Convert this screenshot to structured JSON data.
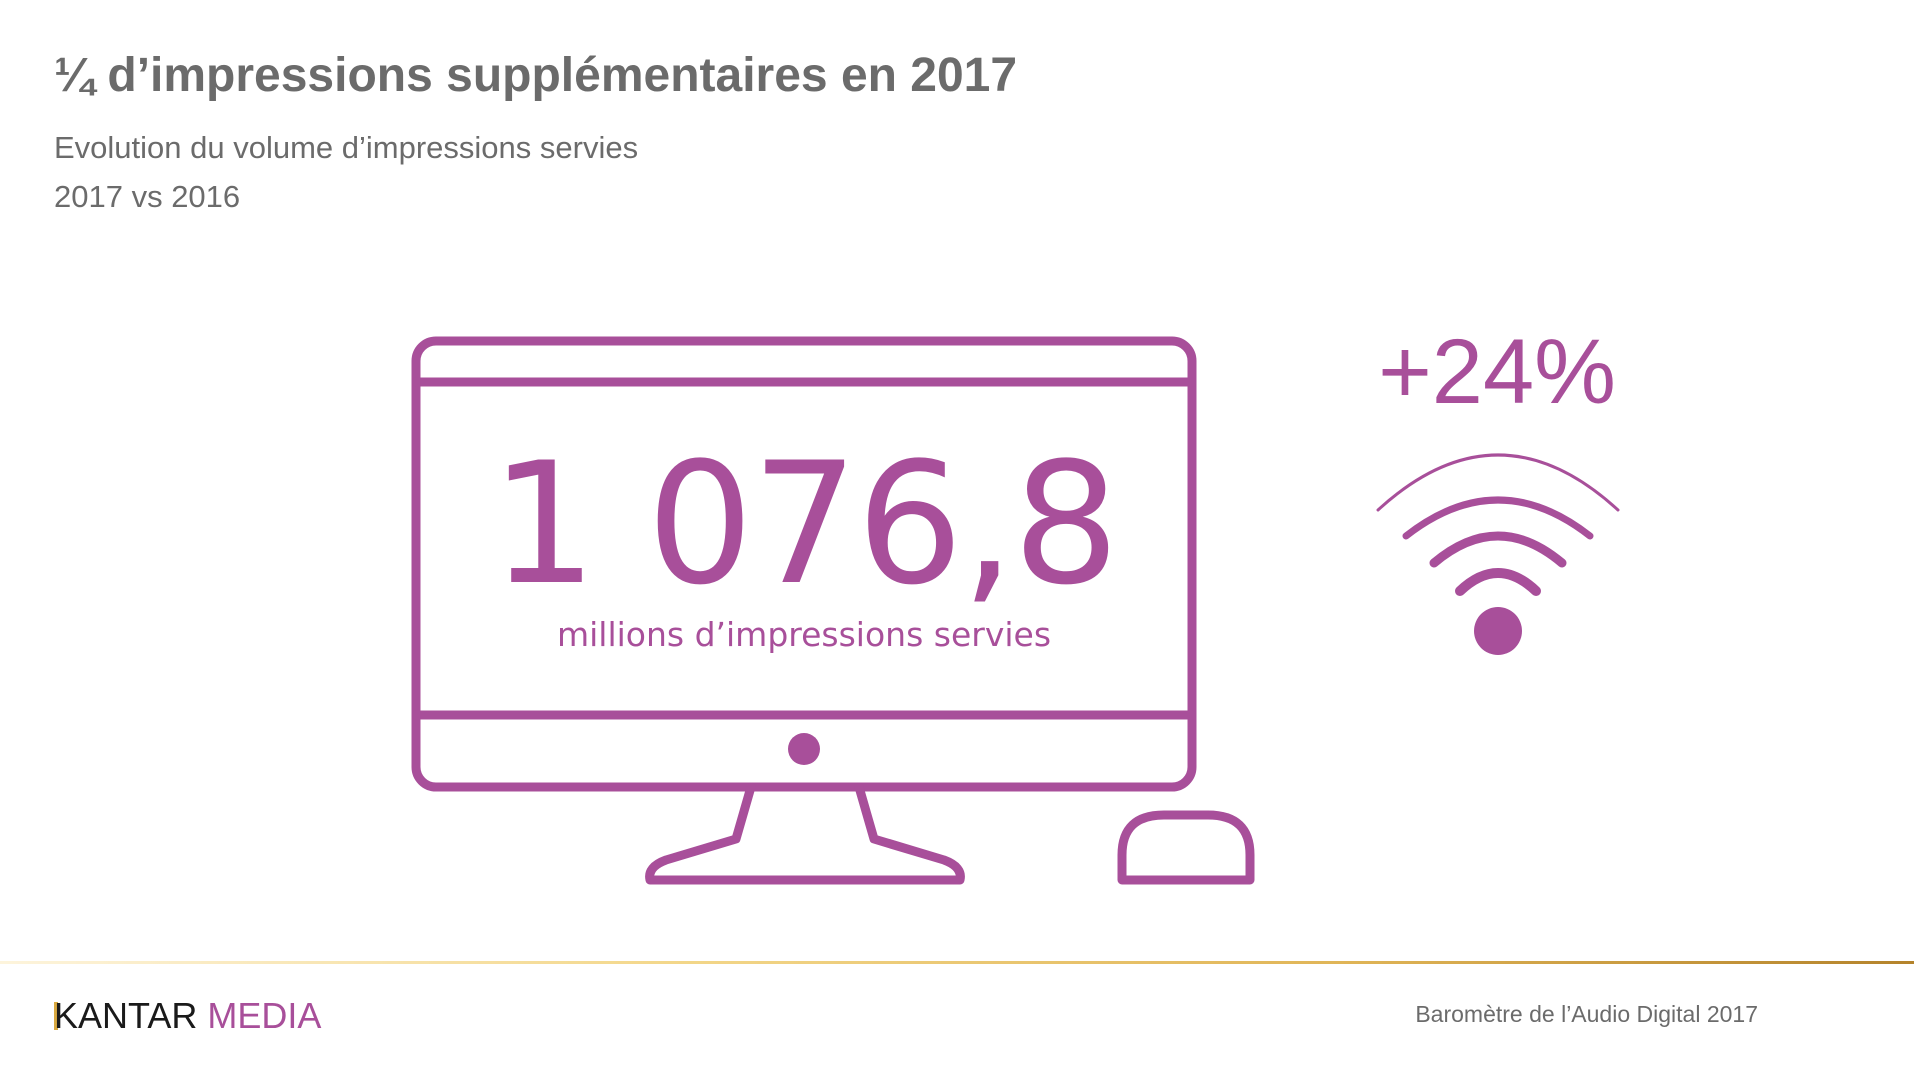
{
  "slide": {
    "title": "¼ d’impressions supplémentaires en 2017",
    "subtitle_line1": "Evolution du volume d’impressions servies",
    "subtitle_line2": "2017 vs 2016"
  },
  "kpi": {
    "value": "1 076,8",
    "unit": "millions d’impressions servies",
    "growth": "+24%"
  },
  "icons": [
    "computer-monitor-icon",
    "computer-mouse-icon",
    "wifi-signal-icon"
  ],
  "colors": {
    "accent": "#a84f9a",
    "text": "#6b6b6b",
    "footer_line": "#e0b557"
  },
  "footer": {
    "logo_part1": "KANTAR",
    "logo_part2": "MEDIA",
    "source": "Baromètre de l’Audio Digital 2017"
  }
}
